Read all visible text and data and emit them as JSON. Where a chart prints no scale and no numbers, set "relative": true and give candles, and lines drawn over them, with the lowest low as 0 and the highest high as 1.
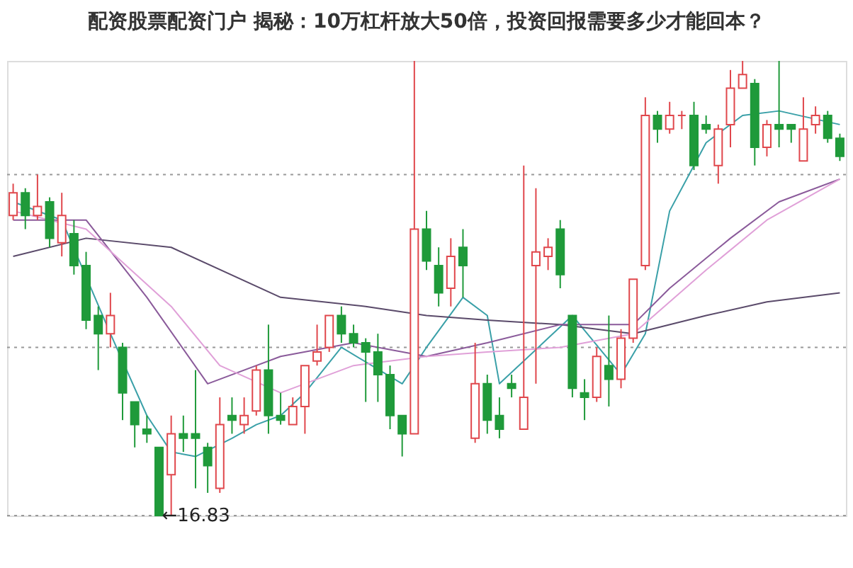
{
  "chart_data": {
    "type": "candlestick",
    "title": "配资股票配资门户 揭秘：10万杠杆放大50倍，投资回报需要多少才能回本？",
    "relative": true,
    "grid": false,
    "tick_labels": false,
    "categories": [
      null,
      null,
      null,
      null,
      null,
      null,
      null,
      null,
      null,
      null,
      null,
      null,
      null,
      null,
      null,
      null,
      null,
      null,
      null,
      null,
      null,
      null,
      null,
      null,
      null,
      null,
      null,
      null,
      null,
      null,
      null,
      null,
      null,
      null,
      null,
      null,
      null,
      null,
      null,
      null,
      null,
      null,
      null,
      null,
      null,
      null,
      null,
      null,
      null,
      null,
      null,
      null,
      null,
      null,
      null,
      null,
      null,
      null,
      null,
      null,
      null,
      null,
      null,
      null,
      null,
      null,
      null,
      null,
      null
    ],
    "ohlc": [
      [
        0.66,
        0.73,
        0.65,
        0.71
      ],
      [
        0.71,
        0.72,
        0.63,
        0.66
      ],
      [
        0.66,
        0.75,
        0.65,
        0.68
      ],
      [
        0.69,
        0.7,
        0.59,
        0.61
      ],
      [
        0.6,
        0.71,
        0.57,
        0.66
      ],
      [
        0.62,
        0.65,
        0.53,
        0.55
      ],
      [
        0.55,
        0.58,
        0.41,
        0.43
      ],
      [
        0.44,
        0.46,
        0.32,
        0.4
      ],
      [
        0.4,
        0.49,
        0.37,
        0.44
      ],
      [
        0.37,
        0.38,
        0.21,
        0.27
      ],
      [
        0.25,
        0.25,
        0.15,
        0.2
      ],
      [
        0.19,
        0.22,
        0.16,
        0.18
      ],
      [
        0.15,
        0.15,
        0,
        0
      ],
      [
        0.09,
        0.22,
        0,
        0.18
      ],
      [
        0.18,
        0.22,
        0.14,
        0.17
      ],
      [
        0.18,
        0.32,
        0.06,
        0.17
      ],
      [
        0.15,
        0.16,
        0.05,
        0.11
      ],
      [
        0.06,
        0.26,
        0.05,
        0.2
      ],
      [
        0.22,
        0.26,
        0.18,
        0.21
      ],
      [
        0.2,
        0.26,
        0.18,
        0.22
      ],
      [
        0.23,
        0.33,
        0.22,
        0.32
      ],
      [
        0.32,
        0.42,
        0.18,
        0.22
      ],
      [
        0.22,
        0.27,
        0.2,
        0.21
      ],
      [
        0.2,
        0.26,
        0.2,
        0.24
      ],
      [
        0.24,
        0.33,
        0.18,
        0.33
      ],
      [
        0.34,
        0.42,
        0.33,
        0.36
      ],
      [
        0.37,
        0.44,
        0.36,
        0.44
      ],
      [
        0.44,
        0.46,
        0.38,
        0.4
      ],
      [
        0.4,
        0.42,
        0.37,
        0.38
      ],
      [
        0.38,
        0.39,
        0.25,
        0.36
      ],
      [
        0.36,
        0.4,
        0.25,
        0.31
      ],
      [
        0.31,
        0.33,
        0.19,
        0.22
      ],
      [
        0.22,
        0.22,
        0.13,
        0.18
      ],
      [
        0.18,
        1.0,
        0.18,
        0.63
      ],
      [
        0.63,
        0.67,
        0.54,
        0.56
      ],
      [
        0.55,
        0.59,
        0.46,
        0.49
      ],
      [
        0.5,
        0.61,
        0.46,
        0.57
      ],
      [
        0.59,
        0.63,
        0.48,
        0.55
      ],
      [
        0.17,
        0.38,
        0.16,
        0.29
      ],
      [
        0.29,
        0.31,
        0.18,
        0.21
      ],
      [
        0.22,
        0.26,
        0.17,
        0.19
      ],
      [
        0.29,
        0.31,
        0.26,
        0.28
      ],
      [
        0.19,
        0.77,
        0.19,
        0.26
      ],
      [
        0.55,
        0.72,
        0.29,
        0.58
      ],
      [
        0.57,
        0.61,
        0.54,
        0.59
      ],
      [
        0.63,
        0.65,
        0.5,
        0.53
      ],
      [
        0.44,
        0.44,
        0.26,
        0.28
      ],
      [
        0.27,
        0.3,
        0.21,
        0.26
      ],
      [
        0.26,
        0.37,
        0.25,
        0.35
      ],
      [
        0.33,
        0.44,
        0.24,
        0.3
      ],
      [
        0.3,
        0.41,
        0.28,
        0.39
      ],
      [
        0.39,
        0.52,
        0.38,
        0.52
      ],
      [
        0.55,
        0.92,
        0.54,
        0.88
      ],
      [
        0.88,
        0.89,
        0.82,
        0.85
      ],
      [
        0.85,
        0.91,
        0.84,
        0.88
      ],
      [
        0.88,
        0.89,
        0.85,
        0.88
      ],
      [
        0.88,
        0.91,
        0.76,
        0.77
      ],
      [
        0.86,
        0.88,
        0.84,
        0.85
      ],
      [
        0.77,
        0.86,
        0.73,
        0.85
      ],
      [
        0.86,
        0.98,
        0.81,
        0.94
      ],
      [
        0.94,
        1.0,
        0.94,
        0.97
      ],
      [
        0.95,
        0.96,
        0.77,
        0.81
      ],
      [
        0.81,
        0.87,
        0.79,
        0.86
      ],
      [
        0.86,
        1.0,
        0.81,
        0.85
      ],
      [
        0.86,
        0.86,
        0.82,
        0.85
      ],
      [
        0.78,
        0.92,
        0.78,
        0.85
      ],
      [
        0.86,
        0.9,
        0.84,
        0.88
      ],
      [
        0.88,
        0.89,
        0.82,
        0.83
      ],
      [
        0.83,
        0.84,
        0.78,
        0.79
      ]
    ],
    "colors": [
      "#e0474c",
      "#1f9a3a",
      "#e0474c",
      "#1f9a3a",
      "#e0474c",
      "#1f9a3a",
      "#1f9a3a",
      "#1f9a3a",
      "#e0474c",
      "#1f9a3a",
      "#1f9a3a",
      "#1f9a3a",
      "#1f9a3a",
      "#e0474c",
      "#1f9a3a",
      "#1f9a3a",
      "#1f9a3a",
      "#e0474c",
      "#1f9a3a",
      "#e0474c",
      "#e0474c",
      "#1f9a3a",
      "#1f9a3a",
      "#e0474c",
      "#e0474c",
      "#e0474c",
      "#e0474c",
      "#1f9a3a",
      "#1f9a3a",
      "#1f9a3a",
      "#1f9a3a",
      "#1f9a3a",
      "#1f9a3a",
      "#e0474c",
      "#1f9a3a",
      "#1f9a3a",
      "#e0474c",
      "#1f9a3a",
      "#e0474c",
      "#1f9a3a",
      "#1f9a3a",
      "#1f9a3a",
      "#e0474c",
      "#e0474c",
      "#e0474c",
      "#1f9a3a",
      "#1f9a3a",
      "#1f9a3a",
      "#e0474c",
      "#1f9a3a",
      "#e0474c",
      "#e0474c",
      "#e0474c",
      "#1f9a3a",
      "#e0474c",
      "#e0474c",
      "#1f9a3a",
      "#1f9a3a",
      "#e0474c",
      "#e0474c",
      "#e0474c",
      "#1f9a3a",
      "#e0474c",
      "#1f9a3a",
      "#1f9a3a",
      "#e0474c",
      "#e0474c",
      "#1f9a3a",
      "#1f9a3a"
    ],
    "series": [
      {
        "type": "line",
        "color": "#3aa0a8",
        "values": [
          0.69,
          null,
          null,
          null,
          0.65,
          null,
          null,
          null,
          0.4,
          null,
          null,
          0.22,
          null,
          0.14,
          null,
          0.13,
          null,
          null,
          0.17,
          null,
          0.2,
          null,
          0.22,
          null,
          0.27,
          null,
          null,
          0.37,
          null,
          null,
          null,
          null,
          0.29,
          null,
          0.37,
          null,
          null,
          0.48,
          null,
          0.44,
          0.29,
          null,
          null,
          null,
          null,
          null,
          0.44,
          null,
          null,
          null,
          0.31,
          null,
          0.4,
          null,
          0.67,
          null,
          null,
          0.82,
          null,
          null,
          0.88,
          null,
          null,
          0.89,
          null,
          null,
          null,
          null,
          0.86
        ]
      },
      {
        "type": "line",
        "color": "#5a4a6a",
        "values": [
          0.57,
          null,
          null,
          null,
          null,
          null,
          0.61,
          null,
          null,
          null,
          null,
          null,
          null,
          0.59,
          null,
          null,
          null,
          null,
          null,
          null,
          null,
          null,
          0.48,
          null,
          null,
          null,
          null,
          null,
          null,
          0.46,
          null,
          null,
          null,
          null,
          0.44,
          null,
          null,
          null,
          null,
          0.43,
          null,
          null,
          null,
          null,
          null,
          0.42,
          null,
          null,
          null,
          null,
          null,
          0.4,
          null,
          null,
          null,
          null,
          null,
          0.44,
          null,
          null,
          null,
          null,
          0.47,
          null,
          null,
          null,
          null,
          null,
          0.49
        ]
      },
      {
        "type": "line",
        "color": "#8a5a9a",
        "values": [
          0.65,
          null,
          null,
          null,
          null,
          null,
          0.65,
          null,
          null,
          null,
          null,
          0.48,
          null,
          null,
          null,
          null,
          0.29,
          null,
          null,
          null,
          null,
          null,
          0.35,
          null,
          null,
          null,
          null,
          null,
          0.38,
          null,
          null,
          null,
          null,
          null,
          0.35,
          null,
          null,
          null,
          null,
          0.38,
          null,
          null,
          null,
          null,
          null,
          0.42,
          null,
          null,
          null,
          null,
          null,
          0.42,
          null,
          null,
          0.5,
          null,
          null,
          null,
          null,
          0.61,
          null,
          null,
          null,
          0.69,
          null,
          null,
          null,
          null,
          0.74
        ]
      },
      {
        "type": "line",
        "color": "#e0a0d8",
        "values": [
          0.67,
          null,
          null,
          null,
          null,
          null,
          0.63,
          null,
          null,
          null,
          null,
          null,
          null,
          0.46,
          null,
          null,
          null,
          0.33,
          null,
          null,
          null,
          null,
          0.27,
          null,
          null,
          null,
          null,
          null,
          0.33,
          null,
          null,
          null,
          null,
          null,
          0.35,
          null,
          null,
          null,
          null,
          0.36,
          null,
          null,
          null,
          null,
          null,
          0.37,
          null,
          null,
          null,
          null,
          null,
          0.4,
          null,
          null,
          null,
          null,
          null,
          0.54,
          null,
          null,
          null,
          null,
          0.65,
          null,
          null,
          null,
          null,
          null,
          0.74
        ]
      }
    ],
    "ref_lines": [
      {
        "axis": "y",
        "value": 0,
        "color": "#999999",
        "line_style": "dotted"
      },
      {
        "axis": "y",
        "value": 0.37,
        "color": "#999999",
        "line_style": "dotted"
      },
      {
        "axis": "y",
        "value": 0.75,
        "color": "#999999",
        "line_style": "dotted"
      }
    ],
    "annotations": [
      {
        "text": "←16.83",
        "y": 0
      }
    ]
  }
}
